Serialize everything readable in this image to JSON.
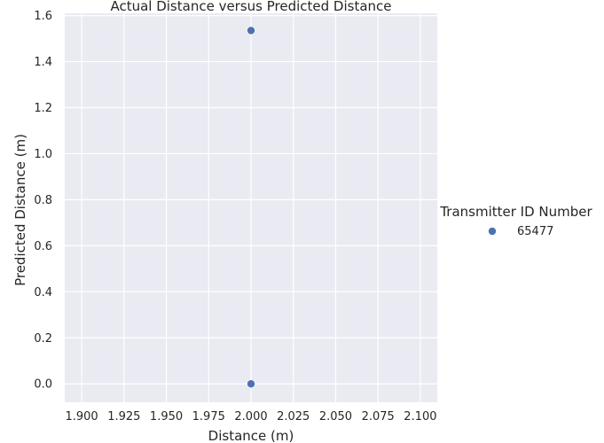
{
  "chart_data": {
    "type": "scatter",
    "title": "Actual Distance versus Predicted Distance",
    "xlabel": "Distance (m)",
    "ylabel": "Predicted Distance (m)",
    "xlim": [
      1.89,
      2.11
    ],
    "ylim": [
      -0.08,
      1.61
    ],
    "xticks": [
      "1.900",
      "1.925",
      "1.950",
      "1.975",
      "2.000",
      "2.025",
      "2.050",
      "2.075",
      "2.100"
    ],
    "yticks": [
      "0.0",
      "0.2",
      "0.4",
      "0.6",
      "0.8",
      "1.0",
      "1.2",
      "1.4",
      "1.6"
    ],
    "grid": true,
    "legend_title": "Transmitter ID Number",
    "legend_position": "right",
    "series": [
      {
        "name": "65477",
        "color": "#4c72b0",
        "points": [
          {
            "x": 2.0,
            "y": 1.535
          },
          {
            "x": 2.0,
            "y": 0.0
          }
        ]
      }
    ]
  }
}
